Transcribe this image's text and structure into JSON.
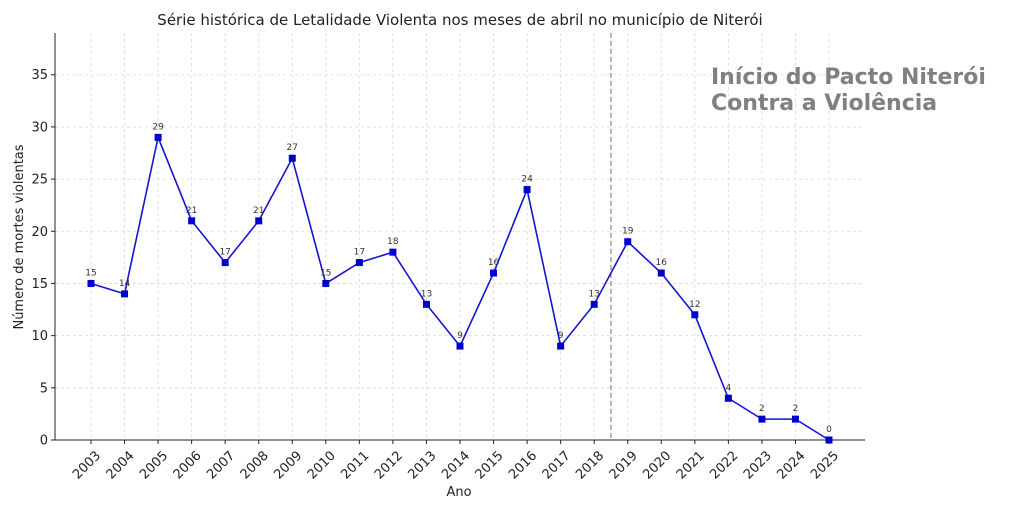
{
  "chart_data": {
    "type": "line",
    "title": "Série histórica de Letalidade Violenta nos meses de abril no município de Niterói",
    "xlabel": "Ano",
    "ylabel": "Número de mortes violentas",
    "categories": [
      "2003",
      "2004",
      "2005",
      "2006",
      "2007",
      "2008",
      "2009",
      "2010",
      "2011",
      "2012",
      "2013",
      "2014",
      "2015",
      "2016",
      "2017",
      "2018",
      "2019",
      "2020",
      "2021",
      "2022",
      "2023",
      "2024",
      "2025"
    ],
    "series": [
      {
        "values": [
          15,
          14,
          29,
          21,
          17,
          21,
          27,
          15,
          17,
          18,
          13,
          9,
          16,
          24,
          9,
          13,
          19,
          16,
          12,
          4,
          2,
          2,
          0
        ]
      }
    ],
    "data_labels": [
      "15",
      "14",
      "29",
      "21",
      "17",
      "21",
      "27",
      "15",
      "17",
      "18",
      "13",
      "9",
      "16",
      "24",
      "9",
      "13",
      "19",
      "16",
      "12",
      "4",
      "2",
      "2",
      "0"
    ],
    "y_ticks": [
      "0",
      "5",
      "10",
      "15",
      "20",
      "25",
      "30",
      "35"
    ],
    "ylim": [
      0,
      39
    ],
    "grid": true,
    "line_color": "#1515d0",
    "marker_color": "#0000cc",
    "vertical_marker": {
      "between": [
        "2018",
        "2019"
      ],
      "style": "dashed",
      "color": "#888888"
    },
    "annotation": [
      "Início do Pacto Niterói",
      "Contra a Violência"
    ],
    "annotation_color": "#808080"
  }
}
